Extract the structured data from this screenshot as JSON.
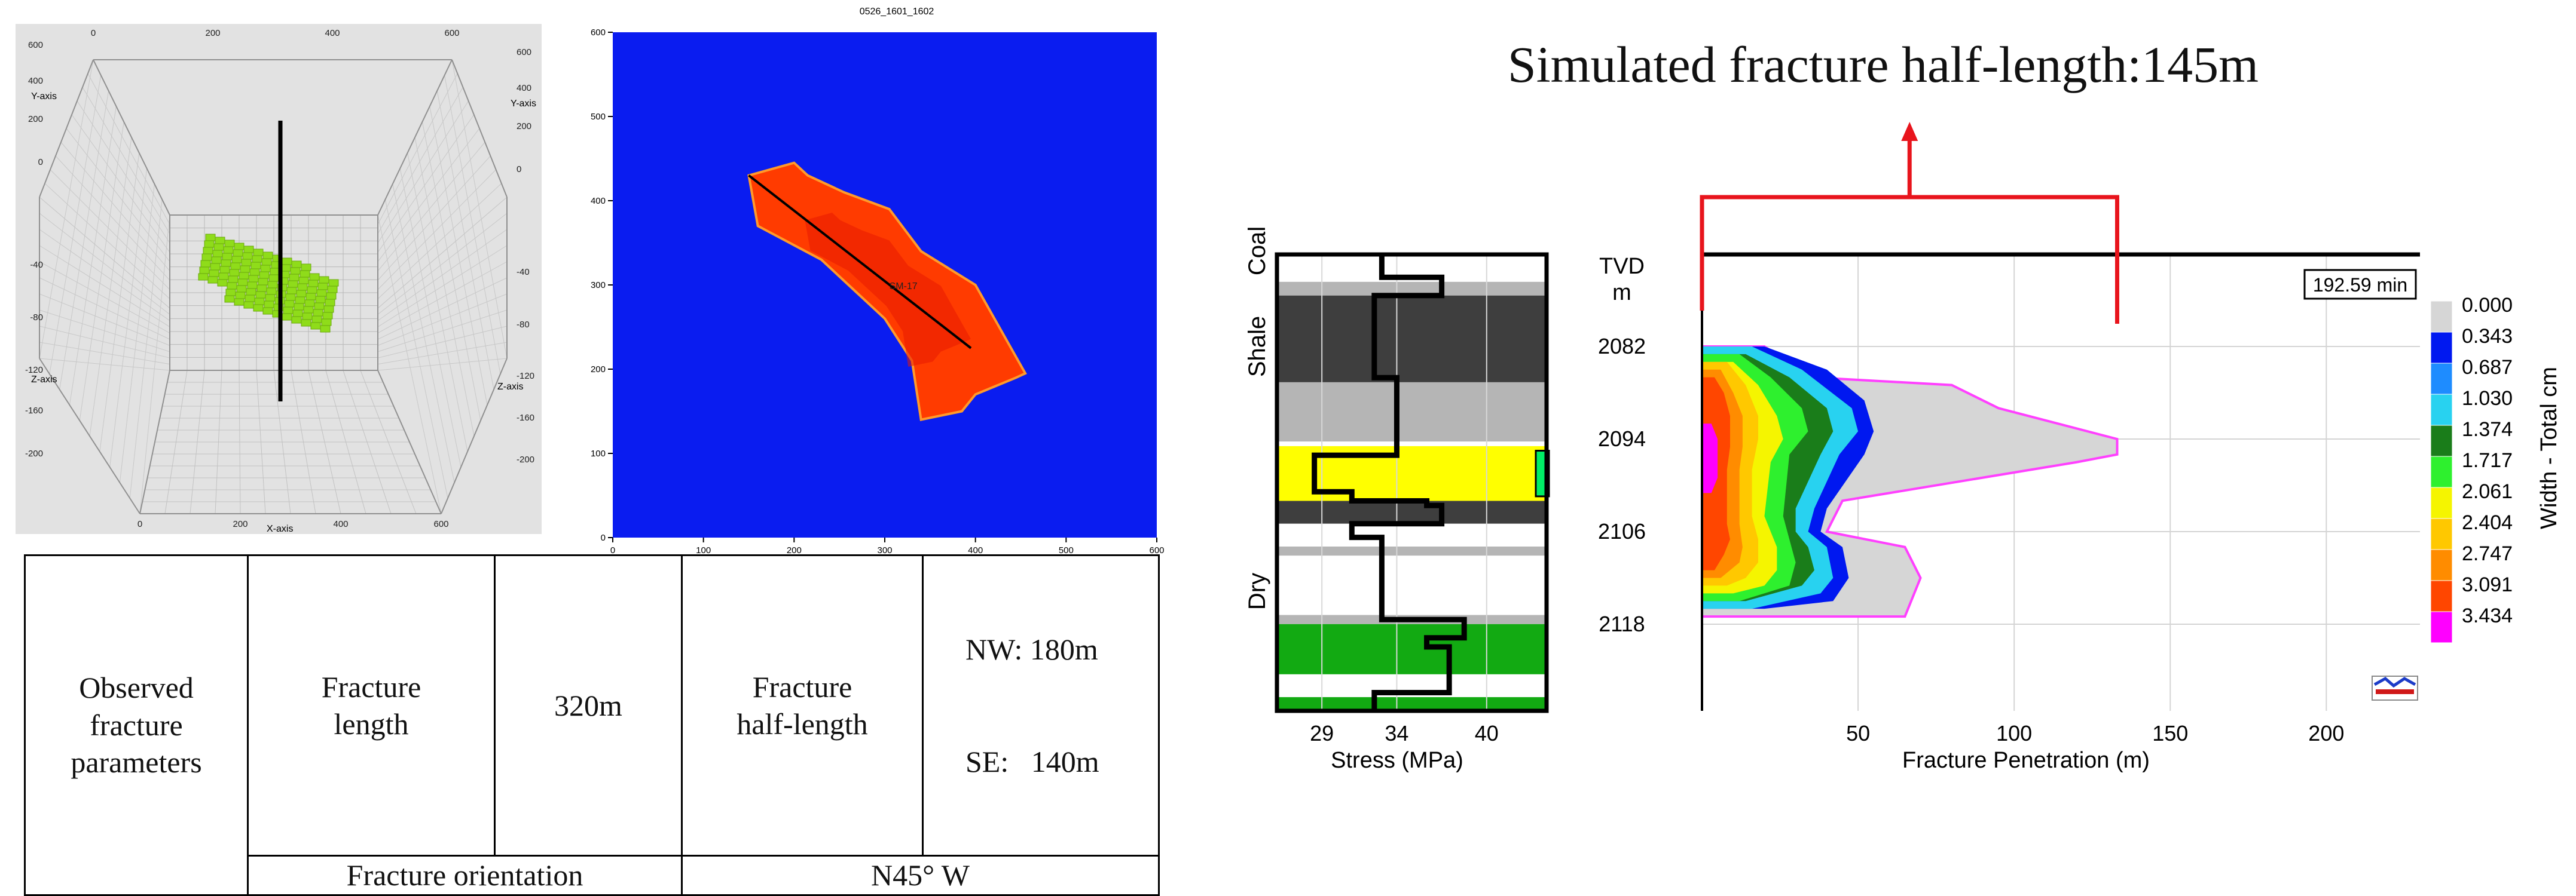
{
  "chart_data": [
    {
      "type": "other",
      "subtype": "3d-voxel-plot",
      "axis_labels": {
        "x": "X-axis",
        "y": "Y-axis",
        "z": "Z-axis"
      },
      "x_ticks": [
        "0",
        "200",
        "400",
        "600"
      ],
      "x_ticks_bottom": [
        "0",
        "200",
        "400",
        "600"
      ],
      "y_ticks_left": [
        "600",
        "400",
        "200",
        "0",
        "-40",
        "-80",
        "-120",
        "-160",
        "-200"
      ],
      "y_ticks_right": [
        "600",
        "400",
        "200",
        "0",
        "-40",
        "-80",
        "-120",
        "-160",
        "-200"
      ],
      "fracture_color": "#8fdc1a",
      "well_color": "#000000"
    },
    {
      "type": "heatmap",
      "title": "0526_1601_1602",
      "x_ticks": [
        "0",
        "100",
        "200",
        "300",
        "400",
        "500",
        "600"
      ],
      "y_ticks": [
        "0",
        "100",
        "200",
        "300",
        "400",
        "500",
        "600"
      ],
      "xlim": [
        0,
        600
      ],
      "ylim": [
        0,
        600
      ],
      "background_color": "#0a1cf0",
      "well_label": "SM-17",
      "fracture_line": {
        "x": [
          150,
          395
        ],
        "y": [
          430,
          225
        ]
      },
      "fracture_outline": {
        "x": [
          150,
          200,
          215,
          255,
          305,
          340,
          400,
          455,
          445,
          400,
          385,
          340,
          330,
          300,
          270,
          230,
          160
        ],
        "y": [
          430,
          445,
          430,
          410,
          390,
          340,
          300,
          195,
          190,
          170,
          150,
          140,
          210,
          260,
          290,
          330,
          370
        ]
      }
    },
    {
      "type": "line",
      "x_ticks": [
        "29",
        "34",
        "40"
      ],
      "xlabel": "Stress (MPa)",
      "xlim": [
        26,
        44
      ],
      "zone_labels": [
        "Shale",
        "Coal",
        "Dry"
      ],
      "stress_profile": {
        "x": [
          33,
          33,
          37,
          37,
          32.5,
          32.5,
          34,
          34,
          28.5,
          28.5,
          31,
          31,
          36,
          36,
          37,
          37,
          31,
          31,
          33,
          33,
          33,
          33,
          38.5,
          38.5,
          36,
          36,
          37.5,
          37.5,
          32.5,
          32.5
        ],
        "y": [
          0,
          0.05,
          0.05,
          0.09,
          0.09,
          0.27,
          0.27,
          0.44,
          0.44,
          0.52,
          0.52,
          0.54,
          0.54,
          0.55,
          0.55,
          0.59,
          0.59,
          0.62,
          0.62,
          0.8,
          0.8,
          0.8,
          0.8,
          0.84,
          0.84,
          0.86,
          0.86,
          0.96,
          0.96,
          1.0
        ]
      },
      "lithology_bands": [
        {
          "from": 0.0,
          "to": 0.06,
          "color": "#ffffff"
        },
        {
          "from": 0.06,
          "to": 0.09,
          "color": "#b5b5b5"
        },
        {
          "from": 0.09,
          "to": 0.28,
          "color": "#3e3e3e"
        },
        {
          "from": 0.28,
          "to": 0.41,
          "color": "#b5b5b5"
        },
        {
          "from": 0.41,
          "to": 0.42,
          "color": "#ffffff"
        },
        {
          "from": 0.42,
          "to": 0.54,
          "color": "#ffff00"
        },
        {
          "from": 0.54,
          "to": 0.59,
          "color": "#3e3e3e"
        },
        {
          "from": 0.59,
          "to": 0.64,
          "color": "#ffffff"
        },
        {
          "from": 0.64,
          "to": 0.66,
          "color": "#b5b5b5"
        },
        {
          "from": 0.66,
          "to": 0.79,
          "color": "#ffffff"
        },
        {
          "from": 0.79,
          "to": 0.81,
          "color": "#b5b5b5"
        },
        {
          "from": 0.81,
          "to": 0.92,
          "color": "#12aa12"
        },
        {
          "from": 0.92,
          "to": 0.97,
          "color": "#ffffff"
        },
        {
          "from": 0.97,
          "to": 1.0,
          "color": "#12aa12"
        }
      ]
    },
    {
      "type": "area",
      "header_text": "Simulated fracture half-length:145m",
      "time_label": "192.59 min",
      "ylabel": "TVD\nm",
      "ylabel_lines": [
        "TVD",
        "m"
      ],
      "xlabel": "Fracture Penetration (m)",
      "x_ticks": [
        "50",
        "100",
        "150",
        "200"
      ],
      "xlim": [
        0,
        230
      ],
      "y_ticks": [
        "2082",
        "2094",
        "2106",
        "2118"
      ],
      "ylim": [
        2082,
        2118
      ],
      "colorbar_title": "Width - Total cm",
      "colorbar": [
        {
          "label": "0.000",
          "color": "#d6d6d6"
        },
        {
          "label": "0.343",
          "color": "#0018f0"
        },
        {
          "label": "0.687",
          "color": "#1e8cff"
        },
        {
          "label": "1.030",
          "color": "#28d2f0"
        },
        {
          "label": "1.374",
          "color": "#1a7d1a"
        },
        {
          "label": "1.717",
          "color": "#2ef02e"
        },
        {
          "label": "2.061",
          "color": "#f5f500"
        },
        {
          "label": "2.404",
          "color": "#ffc800"
        },
        {
          "label": "2.747",
          "color": "#ff8c00"
        },
        {
          "label": "3.091",
          "color": "#ff4600"
        },
        {
          "label": "3.434",
          "color": "#ff00ff"
        }
      ],
      "bracket_x_range": [
        0,
        133
      ],
      "contours": [
        {
          "level": "0.000",
          "color": "#d6d6d6",
          "stroke": "#ff40ff",
          "x": [
            0,
            20,
            35,
            80,
            95,
            133,
            133,
            120,
            45,
            40,
            65,
            70,
            65,
            0
          ],
          "y": [
            2082,
            2082,
            2086,
            2087,
            2090,
            2094,
            2096,
            2097,
            2102,
            2106,
            2108,
            2112,
            2117,
            2117
          ]
        },
        {
          "level": "0.343",
          "color": "#0018f0",
          "x": [
            0,
            20,
            40,
            52,
            55,
            52,
            40,
            38,
            45,
            47,
            42,
            20,
            0
          ],
          "y": [
            2082,
            2082,
            2085,
            2089,
            2093,
            2096,
            2103,
            2106,
            2108,
            2112,
            2115,
            2116,
            2116
          ]
        },
        {
          "level": "1.030",
          "color": "#28d2f0",
          "x": [
            0,
            16,
            32,
            48,
            50,
            44,
            36,
            34,
            40,
            42,
            38,
            16,
            0
          ],
          "y": [
            2082,
            2082,
            2085,
            2090,
            2093,
            2096,
            2103,
            2106,
            2108,
            2112,
            2114,
            2116,
            2116
          ]
        },
        {
          "level": "1.374",
          "color": "#1a7d1a",
          "x": [
            0,
            14,
            28,
            40,
            42,
            38,
            30,
            30,
            34,
            36,
            32,
            14,
            0
          ],
          "y": [
            2083,
            2083,
            2086,
            2090,
            2093,
            2096,
            2103,
            2106,
            2108,
            2111,
            2113,
            2115,
            2115
          ]
        },
        {
          "level": "1.717",
          "color": "#2ef02e",
          "x": [
            0,
            12,
            22,
            32,
            34,
            28,
            26,
            28,
            30,
            28,
            12,
            0
          ],
          "y": [
            2083,
            2083,
            2086,
            2090,
            2093,
            2096,
            2104,
            2107,
            2110,
            2113,
            2115,
            2115
          ]
        },
        {
          "level": "2.061",
          "color": "#f5f500",
          "x": [
            0,
            10,
            18,
            24,
            26,
            22,
            20,
            24,
            24,
            20,
            10,
            0
          ],
          "y": [
            2084,
            2084,
            2087,
            2091,
            2094,
            2097,
            2104,
            2108,
            2111,
            2113,
            2114,
            2114
          ]
        },
        {
          "level": "2.404",
          "color": "#ffc800",
          "x": [
            0,
            8,
            14,
            18,
            18,
            16,
            16,
            18,
            18,
            14,
            8,
            0
          ],
          "y": [
            2084,
            2084,
            2087,
            2091,
            2094,
            2098,
            2104,
            2107,
            2110,
            2112,
            2113,
            2113
          ]
        },
        {
          "level": "2.747",
          "color": "#ff8c00",
          "x": [
            0,
            6,
            10,
            13,
            13,
            12,
            12,
            13,
            12,
            6,
            0
          ],
          "y": [
            2085,
            2085,
            2088,
            2091,
            2095,
            2098,
            2105,
            2108,
            2110,
            2112,
            2112
          ]
        },
        {
          "level": "3.091",
          "color": "#ff4600",
          "x": [
            0,
            4,
            7,
            9,
            9,
            8,
            8,
            9,
            7,
            4,
            0
          ],
          "y": [
            2086,
            2086,
            2088,
            2091,
            2095,
            2098,
            2105,
            2107,
            2109,
            2111,
            2111
          ]
        },
        {
          "level": "3.434",
          "color": "#ff00ff",
          "x": [
            0,
            3,
            5,
            5,
            3,
            0
          ],
          "y": [
            2092,
            2092,
            2094,
            2099,
            2101,
            2101
          ]
        }
      ]
    }
  ],
  "table": {
    "observed_label_lines": [
      "Observed",
      "fracture",
      "parameters"
    ],
    "length_label_lines": [
      "Fracture",
      "length"
    ],
    "length_value": "320m",
    "half_length_label_lines": [
      "Fracture",
      "half-length"
    ],
    "half_length_value_lines": [
      "NW: 180m",
      "SE:   140m"
    ],
    "orientation_label": "Fracture orientation",
    "orientation_value": "N45° W"
  },
  "colors": {
    "red_annotation": "#e8141c"
  }
}
